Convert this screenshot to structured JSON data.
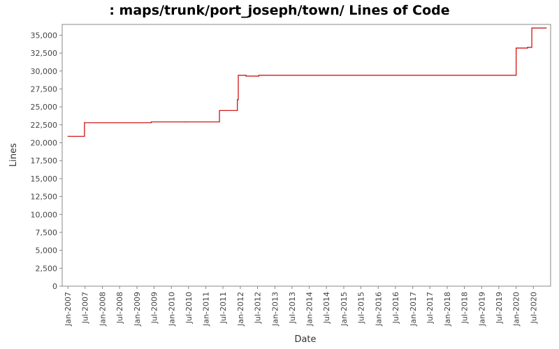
{
  "chart_data": {
    "type": "line",
    "title": ": maps/trunk/port_joseph/town/ Lines of Code",
    "xlabel": "Date",
    "ylabel": "Lines",
    "xlim": [
      "2006-11-01",
      "2020-12-31"
    ],
    "ylim": [
      0,
      36500
    ],
    "grid": false,
    "legend": "none",
    "x_ticks": [
      "Jan-2007",
      "Jul-2007",
      "Jan-2008",
      "Jul-2008",
      "Jan-2009",
      "Jul-2009",
      "Jan-2010",
      "Jul-2010",
      "Jan-2011",
      "Jul-2011",
      "Jan-2012",
      "Jul-2012",
      "Jan-2013",
      "Jul-2013",
      "Jan-2014",
      "Jul-2014",
      "Jan-2015",
      "Jul-2015",
      "Jan-2016",
      "Jul-2016",
      "Jan-2017",
      "Jul-2017",
      "Jan-2018",
      "Jul-2018",
      "Jan-2019",
      "Jul-2019",
      "Jan-2020",
      "Jul-2020"
    ],
    "y_ticks": [
      "0",
      "2,500",
      "5,000",
      "7,500",
      "10,000",
      "12,500",
      "15,000",
      "17,500",
      "20,000",
      "22,500",
      "25,000",
      "27,500",
      "30,000",
      "32,500",
      "35,000"
    ],
    "series": [
      {
        "color": "#cc0000",
        "step": true,
        "points": [
          {
            "x": "2007-01-01",
            "y": 20900
          },
          {
            "x": "2007-06-25",
            "y": 22800
          },
          {
            "x": "2009-06-01",
            "y": 22900
          },
          {
            "x": "2010-06-01",
            "y": 22900
          },
          {
            "x": "2011-05-25",
            "y": 24500
          },
          {
            "x": "2011-12-01",
            "y": 26000
          },
          {
            "x": "2011-12-10",
            "y": 29400
          },
          {
            "x": "2012-03-01",
            "y": 29300
          },
          {
            "x": "2012-07-15",
            "y": 29400
          },
          {
            "x": "2020-01-01",
            "y": 33200
          },
          {
            "x": "2020-05-01",
            "y": 33300
          },
          {
            "x": "2020-06-15",
            "y": 36000
          },
          {
            "x": "2020-11-15",
            "y": 36000
          }
        ]
      }
    ]
  }
}
